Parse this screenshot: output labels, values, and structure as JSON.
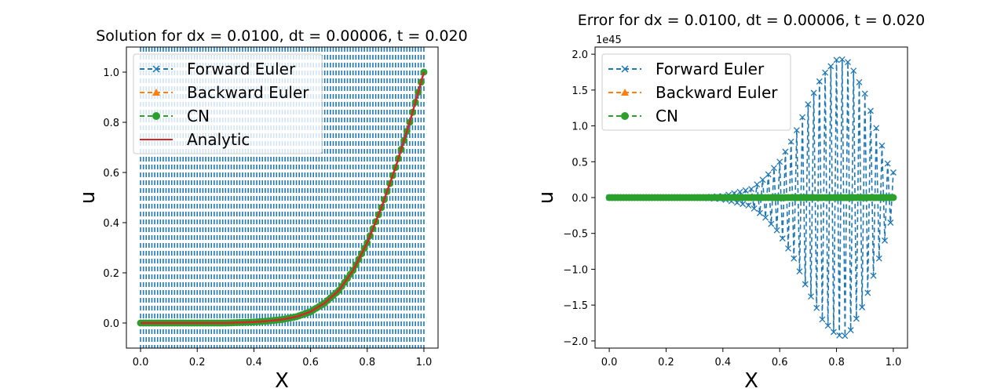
{
  "colors": {
    "forward": "#1f77b4",
    "backward": "#ff7f0e",
    "cn": "#2ca02c",
    "analytic": "#d62728"
  },
  "chart_data": [
    {
      "type": "line",
      "title": "Solution for dx = 0.0100, dt = 0.00006, t = 0.020",
      "xlabel": "X",
      "ylabel": "u",
      "xlim": [
        -0.05,
        1.05
      ],
      "ylim": [
        -0.1,
        1.1
      ],
      "xticks": [
        "0.0",
        "0.2",
        "0.4",
        "0.6",
        "0.8",
        "1.0"
      ],
      "yticks": [
        "0.0",
        "0.2",
        "0.4",
        "0.6",
        "0.8",
        "1.0"
      ],
      "legend": {
        "placement": "upper-left",
        "entries": [
          "Forward Euler",
          "Backward Euler",
          "CN",
          "Analytic"
        ]
      },
      "x": [
        0.0,
        0.05,
        0.1,
        0.15,
        0.2,
        0.25,
        0.3,
        0.35,
        0.4,
        0.45,
        0.5,
        0.55,
        0.6,
        0.65,
        0.7,
        0.75,
        0.8,
        0.85,
        0.9,
        0.95,
        1.0
      ],
      "series": [
        {
          "name": "Backward Euler",
          "values": [
            0.0,
            0.0,
            0.0,
            0.0,
            0.0,
            0.0,
            0.0,
            0.002,
            0.004,
            0.008,
            0.014,
            0.025,
            0.045,
            0.08,
            0.13,
            0.21,
            0.32,
            0.46,
            0.62,
            0.8,
            1.0
          ]
        },
        {
          "name": "CN",
          "values": [
            0.0,
            0.0,
            0.0,
            0.0,
            0.0,
            0.0,
            0.0,
            0.002,
            0.004,
            0.008,
            0.014,
            0.025,
            0.045,
            0.08,
            0.13,
            0.21,
            0.32,
            0.46,
            0.62,
            0.8,
            1.0
          ]
        },
        {
          "name": "Analytic",
          "values": [
            0.0,
            0.0,
            0.0,
            0.0,
            0.0,
            0.0,
            0.0,
            0.002,
            0.004,
            0.008,
            0.014,
            0.025,
            0.045,
            0.08,
            0.13,
            0.21,
            0.32,
            0.46,
            0.62,
            0.8,
            1.0
          ]
        }
      ],
      "forward_euler_note": "oscillates between roughly -1e45 and +1e45, filling the full y-range"
    },
    {
      "type": "line",
      "title": "Error for dx = 0.0100, dt = 0.00006, t = 0.020",
      "xlabel": "X",
      "ylabel": "u",
      "y_offset_text": "1e45",
      "xlim": [
        -0.05,
        1.05
      ],
      "ylim": [
        -2.1,
        2.1
      ],
      "xticks": [
        "0.0",
        "0.2",
        "0.4",
        "0.6",
        "0.8",
        "1.0"
      ],
      "yticks": [
        "2.0",
        "1.5",
        "1.0",
        "0.5",
        "0.0",
        "−0.5",
        "−1.0",
        "−1.5",
        "−2.0"
      ],
      "legend": {
        "placement": "upper-left",
        "entries": [
          "Forward Euler",
          "Backward Euler",
          "CN"
        ]
      },
      "forward_envelope": {
        "x": [
          0.0,
          0.3,
          0.4,
          0.5,
          0.55,
          0.6,
          0.65,
          0.7,
          0.75,
          0.8,
          0.83,
          0.85,
          0.9,
          0.95,
          0.99
        ],
        "values": [
          0.0,
          0.0,
          0.02,
          0.12,
          0.28,
          0.5,
          0.85,
          1.3,
          1.7,
          1.92,
          1.93,
          1.85,
          1.45,
          0.85,
          0.35
        ]
      },
      "backward_error": 0.0,
      "cn_error": 0.0
    }
  ]
}
